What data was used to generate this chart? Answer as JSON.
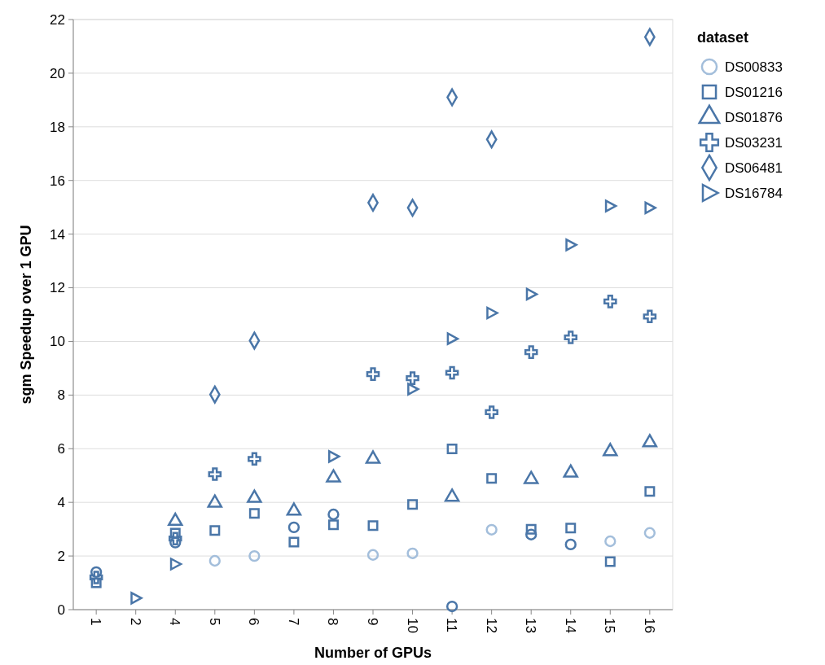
{
  "chart_data": {
    "type": "scatter",
    "xlabel": "Number of GPUs",
    "ylabel": "sgm Speedup over 1 GPU",
    "legend_title": "dataset",
    "categories": [
      "1",
      "2",
      "4",
      "5",
      "6",
      "7",
      "8",
      "9",
      "10",
      "11",
      "12",
      "13",
      "14",
      "15",
      "16"
    ],
    "ylim": [
      0,
      22
    ],
    "yticks": [
      0,
      2,
      4,
      6,
      8,
      10,
      12,
      14,
      16,
      18,
      20,
      22
    ],
    "grid": "y",
    "legend": "right",
    "series": [
      {
        "name": "DS00833",
        "marker": "circle",
        "color": "#a3bedb",
        "colors": [
          "#4a76a8",
          null,
          "#4a76a8",
          "#a3bedb",
          "#a3bedb",
          "#4a76a8",
          "#4a76a8",
          "#a3bedb",
          "#a3bedb",
          "#4a76a8",
          "#a3bedb",
          "#4a76a8",
          "#4a76a8",
          "#a3bedb",
          "#a3bedb"
        ],
        "values": [
          1.4,
          null,
          2.5,
          1.82,
          2.0,
          3.07,
          3.55,
          2.04,
          2.1,
          0.12,
          2.98,
          2.8,
          2.43,
          2.55,
          2.86
        ]
      },
      {
        "name": "DS01216",
        "marker": "square",
        "color": "#4a76a8",
        "values": [
          1.0,
          null,
          2.85,
          2.95,
          3.59,
          2.52,
          3.16,
          3.13,
          3.92,
          5.99,
          4.89,
          3.0,
          3.04,
          1.79,
          4.41
        ]
      },
      {
        "name": "DS01876",
        "marker": "triangle",
        "color": "#4a76a8",
        "values": [
          null,
          null,
          3.3,
          3.98,
          4.16,
          3.68,
          4.92,
          5.62,
          null,
          4.2,
          null,
          4.86,
          5.1,
          5.9,
          6.23
        ]
      },
      {
        "name": "DS03231",
        "marker": "cross",
        "color": "#4a76a8",
        "values": [
          1.2,
          null,
          2.65,
          5.05,
          5.62,
          null,
          null,
          8.78,
          8.63,
          8.83,
          7.36,
          9.6,
          10.15,
          11.49,
          10.93
        ]
      },
      {
        "name": "DS06481",
        "marker": "diamond",
        "color": "#4a76a8",
        "values": [
          null,
          null,
          null,
          8.02,
          10.03,
          null,
          null,
          15.17,
          14.98,
          19.1,
          17.53,
          null,
          null,
          null,
          21.35
        ]
      },
      {
        "name": "DS16784",
        "marker": "triangle-right",
        "color": "#4a76a8",
        "values": [
          null,
          0.43,
          1.7,
          null,
          null,
          null,
          5.71,
          null,
          8.22,
          10.1,
          11.06,
          11.76,
          13.6,
          15.05,
          14.98
        ]
      }
    ]
  }
}
